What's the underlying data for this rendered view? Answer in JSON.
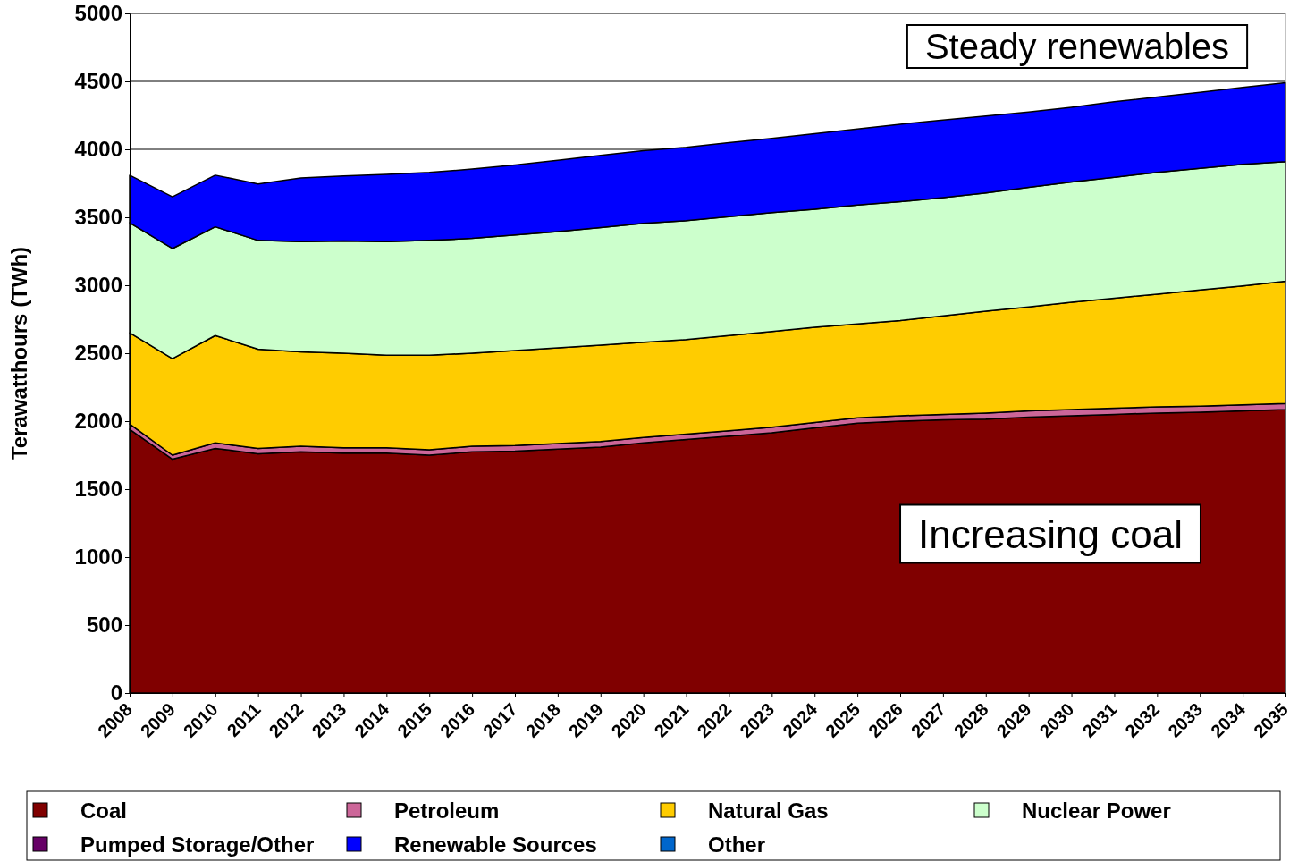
{
  "chart_data": {
    "type": "area",
    "stacked": true,
    "ylabel": "Terawatthours (TWh)",
    "x": [
      2008,
      2009,
      2010,
      2011,
      2012,
      2013,
      2014,
      2015,
      2016,
      2017,
      2018,
      2019,
      2020,
      2021,
      2022,
      2023,
      2024,
      2025,
      2026,
      2027,
      2028,
      2029,
      2030,
      2031,
      2032,
      2033,
      2034,
      2035
    ],
    "xlim": [
      2008,
      2035
    ],
    "xticks": [
      2008,
      2009,
      2010,
      2011,
      2012,
      2013,
      2014,
      2015,
      2016,
      2017,
      2018,
      2019,
      2020,
      2021,
      2022,
      2023,
      2024,
      2025,
      2026,
      2027,
      2028,
      2029,
      2030,
      2031,
      2032,
      2033,
      2034,
      2035
    ],
    "ylim": [
      0,
      5000
    ],
    "yticks": [
      0,
      500,
      1000,
      1500,
      2000,
      2500,
      3000,
      3500,
      4000,
      4500,
      5000
    ],
    "grid": "y",
    "legend": "bottom",
    "series": [
      {
        "name": "Coal",
        "color": "#800000",
        "values": [
          1940,
          1720,
          1800,
          1760,
          1775,
          1765,
          1765,
          1750,
          1775,
          1780,
          1795,
          1810,
          1840,
          1865,
          1890,
          1915,
          1950,
          1985,
          2000,
          2010,
          2015,
          2030,
          2040,
          2050,
          2060,
          2065,
          2075,
          2085
        ]
      },
      {
        "name": "Petroleum",
        "color": "#cc6699",
        "values": [
          40,
          30,
          40,
          40,
          40,
          40,
          40,
          40,
          40,
          40,
          40,
          40,
          40,
          40,
          40,
          40,
          40,
          40,
          40,
          40,
          45,
          45,
          45,
          45,
          45,
          45,
          45,
          45
        ]
      },
      {
        "name": "Natural Gas",
        "color": "#ffcc00",
        "values": [
          670,
          710,
          790,
          730,
          695,
          695,
          680,
          695,
          685,
          700,
          705,
          710,
          700,
          695,
          700,
          705,
          700,
          690,
          700,
          725,
          750,
          765,
          790,
          810,
          830,
          855,
          875,
          900
        ]
      },
      {
        "name": "Nuclear Power",
        "color": "#ccffcc",
        "values": [
          810,
          810,
          800,
          800,
          810,
          825,
          835,
          845,
          845,
          850,
          855,
          865,
          875,
          875,
          875,
          875,
          870,
          875,
          875,
          870,
          870,
          880,
          885,
          890,
          895,
          895,
          895,
          880
        ]
      },
      {
        "name": "Pumped Storage/Other",
        "color": "#660066",
        "values": [
          null,
          null,
          null,
          null,
          null,
          null,
          null,
          null,
          null,
          null,
          null,
          null,
          null,
          null,
          null,
          null,
          null,
          null,
          null,
          null,
          null,
          null,
          null,
          null,
          null,
          null,
          null,
          null
        ]
      },
      {
        "name": "Renewable Sources",
        "color": "#0000ff",
        "values": [
          350,
          380,
          380,
          415,
          470,
          480,
          495,
          500,
          510,
          515,
          525,
          530,
          535,
          540,
          545,
          545,
          555,
          560,
          570,
          570,
          565,
          555,
          550,
          555,
          555,
          560,
          565,
          580
        ]
      },
      {
        "name": "Other",
        "color": "#0066cc",
        "values": [
          null,
          null,
          null,
          null,
          null,
          null,
          null,
          null,
          null,
          null,
          null,
          null,
          null,
          null,
          null,
          null,
          null,
          null,
          null,
          null,
          null,
          null,
          null,
          null,
          null,
          null,
          null,
          null
        ]
      }
    ],
    "annotations": [
      "Steady renewables",
      "Increasing coal"
    ]
  }
}
